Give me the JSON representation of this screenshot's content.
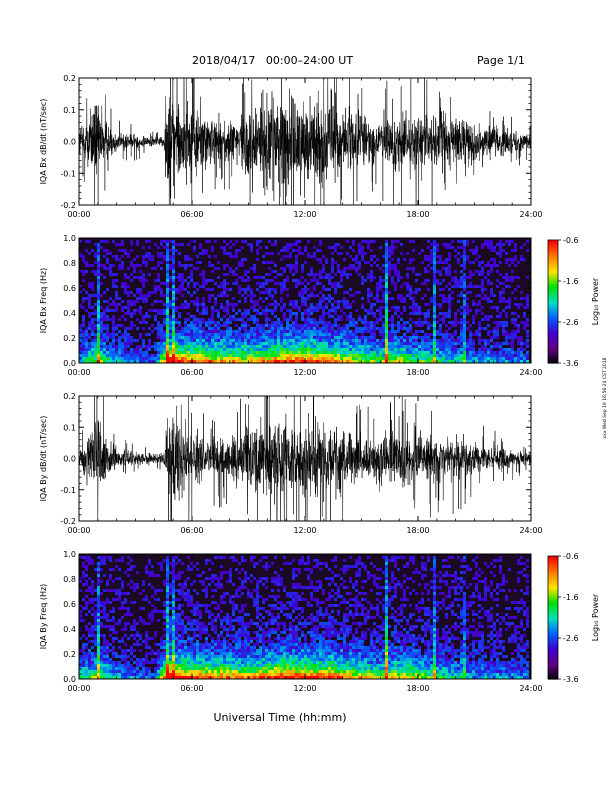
{
  "header": {
    "title": "2018/04/17   00:00–24:00 UT",
    "page": "Page 1/1"
  },
  "side_stamp": "xxx Wed Sep 19 16:56:24 CST 2018",
  "xlabel": "Universal Time (hh:mm)",
  "colors": {
    "trace": "#000000",
    "background": "#ffffff",
    "spectrogram_floor": "#1a0a22"
  },
  "colorbar": {
    "label": "Log₁₀ Power",
    "range": [
      -3.6,
      -0.6
    ],
    "ticks": [
      "-0.6",
      "-1.6",
      "-2.6",
      "-3.6"
    ],
    "colormap": [
      "#ff0000",
      "#ff7a00",
      "#ffe600",
      "#00e000",
      "#00e0c0",
      "#0060ff",
      "#4000d0",
      "#600080",
      "#000000"
    ]
  },
  "chart_data": [
    {
      "type": "line",
      "name": "bx_waveform",
      "ylabel": "IQA Bx dB/dt (nT/sec)",
      "xlim_hours": [
        0,
        24
      ],
      "ylim": [
        -0.2,
        0.2
      ],
      "xticks": [
        "00:00",
        "06:00",
        "12:00",
        "18:00",
        "24:00"
      ],
      "yticks": [
        "0.2",
        "0.1",
        "0.0",
        "-0.1",
        "-0.2"
      ],
      "envelope": {
        "hours": [
          0,
          0.5,
          1.0,
          1.5,
          2.0,
          3.0,
          4.0,
          4.5,
          4.7,
          5.0,
          5.5,
          6.0,
          7.0,
          8.0,
          9.0,
          10.0,
          11.0,
          12.0,
          13.0,
          14.0,
          15.0,
          16.0,
          16.5,
          17.0,
          18.0,
          19.0,
          20.0,
          21.0,
          22.0,
          23.0,
          24.0
        ],
        "amplitude": [
          0.08,
          0.16,
          0.22,
          0.09,
          0.05,
          0.04,
          0.025,
          0.03,
          0.22,
          0.25,
          0.23,
          0.18,
          0.12,
          0.1,
          0.2,
          0.26,
          0.25,
          0.22,
          0.21,
          0.2,
          0.13,
          0.12,
          0.14,
          0.16,
          0.15,
          0.14,
          0.14,
          0.09,
          0.08,
          0.06,
          0.04
        ]
      },
      "mean": 0.0
    },
    {
      "type": "heatmap",
      "name": "bx_spectrogram",
      "ylabel": "IQA Bx Freq (Hz)",
      "xlim_hours": [
        0,
        24
      ],
      "ylim": [
        0,
        1.0
      ],
      "xticks": [
        "00:00",
        "06:00",
        "12:00",
        "18:00",
        "24:00"
      ],
      "yticks": [
        "1.0",
        "0.8",
        "0.6",
        "0.4",
        "0.2",
        "0.0"
      ],
      "zlim": [
        -3.6,
        -0.6
      ],
      "activity": {
        "hours": [
          0,
          1.0,
          2.0,
          4.0,
          4.8,
          5.5,
          7.0,
          9.0,
          11.0,
          12.0,
          14.0,
          16.0,
          17.0,
          19.0,
          21.0,
          24.0
        ],
        "level": [
          0.3,
          0.45,
          0.25,
          0.12,
          0.75,
          0.7,
          0.6,
          0.55,
          0.7,
          0.7,
          0.6,
          0.4,
          0.5,
          0.35,
          0.25,
          0.2
        ]
      },
      "vertical_streaks_hours": [
        1.0,
        4.75,
        5.0,
        16.4,
        19.0,
        20.5
      ]
    },
    {
      "type": "line",
      "name": "by_waveform",
      "ylabel": "IQA By dB/dt (nT/sec)",
      "xlim_hours": [
        0,
        24
      ],
      "ylim": [
        -0.2,
        0.2
      ],
      "xticks": [
        "00:00",
        "06:00",
        "12:00",
        "18:00",
        "24:00"
      ],
      "yticks": [
        "0.2",
        "0.1",
        "0.0",
        "-0.1",
        "-0.2"
      ],
      "envelope": {
        "hours": [
          0,
          0.5,
          1.0,
          1.5,
          2.0,
          3.0,
          4.0,
          4.5,
          4.7,
          5.0,
          5.5,
          6.0,
          7.0,
          8.0,
          9.0,
          10.0,
          11.0,
          12.0,
          13.0,
          14.0,
          15.0,
          16.0,
          16.5,
          17.0,
          18.0,
          19.0,
          20.0,
          21.0,
          22.0,
          23.0,
          24.0
        ],
        "amplitude": [
          0.06,
          0.12,
          0.22,
          0.1,
          0.05,
          0.035,
          0.025,
          0.03,
          0.2,
          0.23,
          0.18,
          0.14,
          0.1,
          0.12,
          0.17,
          0.22,
          0.24,
          0.2,
          0.19,
          0.17,
          0.12,
          0.11,
          0.13,
          0.15,
          0.14,
          0.12,
          0.12,
          0.08,
          0.06,
          0.05,
          0.04
        ]
      },
      "mean": 0.0
    },
    {
      "type": "heatmap",
      "name": "by_spectrogram",
      "ylabel": "IQA By Freq (Hz)",
      "xlim_hours": [
        0,
        24
      ],
      "ylim": [
        0,
        1.0
      ],
      "xticks": [
        "00:00",
        "06:00",
        "12:00",
        "18:00",
        "24:00"
      ],
      "yticks": [
        "1.0",
        "0.8",
        "0.6",
        "0.4",
        "0.2",
        "0.0"
      ],
      "zlim": [
        -3.6,
        -0.6
      ],
      "activity": {
        "hours": [
          0,
          1.0,
          2.0,
          4.0,
          4.8,
          5.5,
          7.0,
          9.0,
          11.0,
          12.0,
          14.0,
          16.0,
          17.0,
          19.0,
          21.0,
          24.0
        ],
        "level": [
          0.3,
          0.45,
          0.25,
          0.12,
          0.8,
          0.75,
          0.65,
          0.6,
          0.75,
          0.7,
          0.65,
          0.45,
          0.55,
          0.4,
          0.25,
          0.2
        ]
      },
      "vertical_streaks_hours": [
        1.0,
        4.75,
        5.0,
        16.4,
        19.0,
        20.5
      ]
    }
  ]
}
